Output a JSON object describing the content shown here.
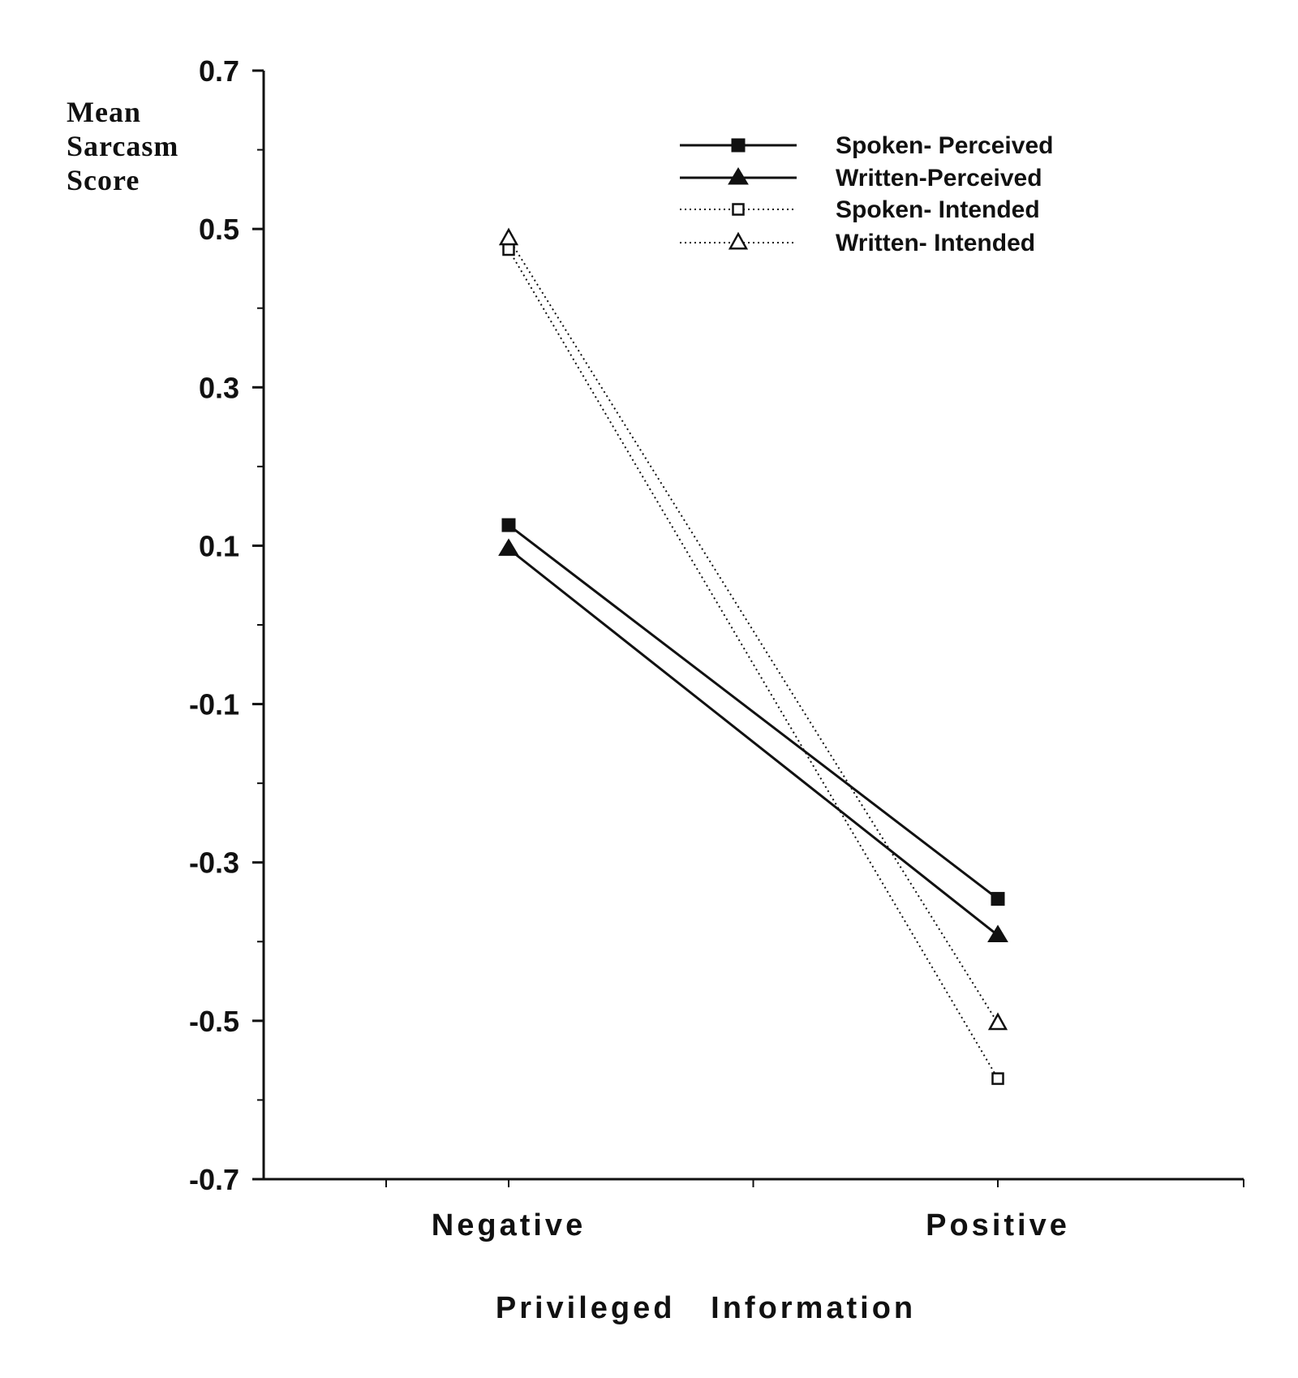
{
  "chart_data": {
    "type": "line",
    "title": "",
    "ylabel_lines": [
      "Mean",
      "Sarcasm",
      "Score"
    ],
    "xlabel": "Privileged   Information",
    "categories": [
      "Negative",
      "Positive"
    ],
    "ylim": [
      -0.7,
      0.7
    ],
    "yticks": [
      -0.7,
      -0.5,
      -0.3,
      -0.1,
      0.1,
      0.3,
      0.5,
      0.7
    ],
    "ytick_labels": [
      "-0.7",
      "-0.5",
      "-0.3",
      "-0.1",
      "0.1",
      "0.3",
      "0.5",
      "0.7"
    ],
    "grid": false,
    "legend_position": "top-right",
    "series": [
      {
        "name": "Spoken- Perceived",
        "values": [
          0.126,
          -0.346
        ],
        "line": "solid",
        "marker": "square-filled",
        "color": "#111111"
      },
      {
        "name": "Written-Perceived",
        "values": [
          0.096,
          -0.392
        ],
        "line": "solid",
        "marker": "triangle-filled",
        "color": "#111111"
      },
      {
        "name": "Spoken- Intended",
        "values": [
          0.474,
          -0.573
        ],
        "line": "dotted",
        "marker": "square-open",
        "color": "#111111"
      },
      {
        "name": "Written- Intended",
        "values": [
          0.488,
          -0.503
        ],
        "line": "dotted",
        "marker": "triangle-open",
        "color": "#111111"
      }
    ]
  }
}
